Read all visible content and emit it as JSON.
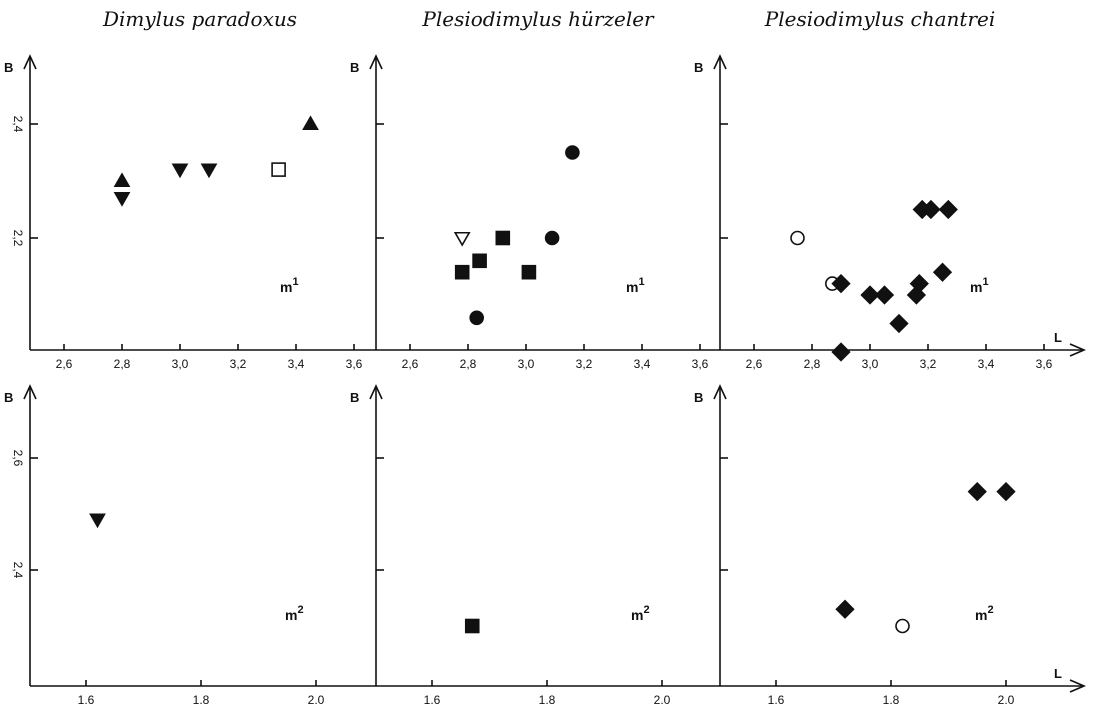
{
  "titles": [
    "Dimylus paradoxus",
    "Plesiodimylus hürzeler",
    "Plesiodimylus chantrei"
  ],
  "axis_labels": {
    "y": "B",
    "x": "L"
  },
  "chart_data": [
    {
      "type": "scatter",
      "row": 0,
      "col": 0,
      "title": "Dimylus paradoxus",
      "panel_label": {
        "base": "m",
        "sup": "1"
      },
      "xlim": [
        2.45,
        3.72
      ],
      "ylim": [
        1.99,
        2.4
      ],
      "x_ticks": [
        2.6,
        2.8,
        3.0,
        3.2,
        3.4,
        3.6
      ],
      "x_tick_labels": [
        "2,6",
        "2,8",
        "3,0",
        "3,2",
        "3,4",
        "3,6"
      ],
      "y_ticks": [
        2.2,
        2.4
      ],
      "y_tick_labels": [
        "2,2",
        "2,4"
      ],
      "points": [
        {
          "x": 2.8,
          "y": 2.3,
          "marker": "triangle-up-filled"
        },
        {
          "x": 2.8,
          "y": 2.27,
          "marker": "triangle-down-filled"
        },
        {
          "x": 3.0,
          "y": 2.32,
          "marker": "triangle-down-filled"
        },
        {
          "x": 3.1,
          "y": 2.32,
          "marker": "triangle-down-filled"
        },
        {
          "x": 3.34,
          "y": 2.32,
          "marker": "square-open"
        },
        {
          "x": 3.45,
          "y": 2.4,
          "marker": "triangle-up-filled"
        }
      ]
    },
    {
      "type": "scatter",
      "row": 0,
      "col": 1,
      "title": "Plesiodimylus hürzeler",
      "panel_label": {
        "base": "m",
        "sup": "1"
      },
      "xlim": [
        2.45,
        3.72
      ],
      "ylim": [
        1.99,
        2.4
      ],
      "x_ticks": [
        2.6,
        2.8,
        3.0,
        3.2,
        3.4,
        3.6
      ],
      "x_tick_labels": [
        "2,6",
        "2,8",
        "3,0",
        "3,2",
        "3,4",
        "3,6"
      ],
      "y_ticks": [
        2.2,
        2.4
      ],
      "y_tick_labels": [],
      "points": [
        {
          "x": 2.78,
          "y": 2.2,
          "marker": "triangle-down-open"
        },
        {
          "x": 2.78,
          "y": 2.14,
          "marker": "square-filled"
        },
        {
          "x": 2.84,
          "y": 2.16,
          "marker": "square-filled"
        },
        {
          "x": 2.92,
          "y": 2.2,
          "marker": "square-filled"
        },
        {
          "x": 3.01,
          "y": 2.14,
          "marker": "square-filled"
        },
        {
          "x": 2.83,
          "y": 2.06,
          "marker": "circle-filled"
        },
        {
          "x": 3.09,
          "y": 2.2,
          "marker": "circle-filled"
        },
        {
          "x": 3.16,
          "y": 2.35,
          "marker": "circle-filled"
        }
      ]
    },
    {
      "type": "scatter",
      "row": 0,
      "col": 2,
      "title": "Plesiodimylus chantrei",
      "panel_label": {
        "base": "m",
        "sup": "1"
      },
      "xlim": [
        2.45,
        3.72
      ],
      "ylim": [
        1.99,
        2.4
      ],
      "x_ticks": [
        2.6,
        2.8,
        3.0,
        3.2,
        3.4,
        3.6
      ],
      "x_tick_labels": [
        "2,6",
        "2,8",
        "3,0",
        "3,2",
        "3,4",
        "3,6"
      ],
      "y_ticks": [
        2.2,
        2.4
      ],
      "y_tick_labels": [],
      "points": [
        {
          "x": 2.75,
          "y": 2.2,
          "marker": "circle-open"
        },
        {
          "x": 2.87,
          "y": 2.12,
          "marker": "circle-open"
        },
        {
          "x": 2.9,
          "y": 2.12,
          "marker": "diamond-filled"
        },
        {
          "x": 2.9,
          "y": 2.0,
          "marker": "diamond-filled"
        },
        {
          "x": 3.0,
          "y": 2.1,
          "marker": "diamond-filled"
        },
        {
          "x": 3.05,
          "y": 2.1,
          "marker": "diamond-filled"
        },
        {
          "x": 3.1,
          "y": 2.05,
          "marker": "diamond-filled"
        },
        {
          "x": 3.16,
          "y": 2.1,
          "marker": "diamond-filled"
        },
        {
          "x": 3.17,
          "y": 2.12,
          "marker": "diamond-filled"
        },
        {
          "x": 3.18,
          "y": 2.25,
          "marker": "diamond-filled"
        },
        {
          "x": 3.21,
          "y": 2.25,
          "marker": "diamond-filled"
        },
        {
          "x": 3.25,
          "y": 2.14,
          "marker": "diamond-filled"
        },
        {
          "x": 3.27,
          "y": 2.25,
          "marker": "diamond-filled"
        }
      ]
    },
    {
      "type": "scatter",
      "row": 1,
      "col": 0,
      "title": "Dimylus paradoxus",
      "panel_label": {
        "base": "m",
        "sup": "2"
      },
      "xlim": [
        1.45,
        2.11
      ],
      "ylim": [
        2.18,
        2.79
      ],
      "x_ticks": [
        1.6,
        1.8,
        2.0
      ],
      "x_tick_labels": [
        "1,6",
        "1,8",
        "2,0"
      ],
      "y_ticks": [
        2.4,
        2.6
      ],
      "y_tick_labels": [
        "2,4",
        "2,6"
      ],
      "points": [
        {
          "x": 1.62,
          "y": 2.49,
          "marker": "triangle-down-filled"
        }
      ]
    },
    {
      "type": "scatter",
      "row": 1,
      "col": 1,
      "title": "Plesiodimylus hürzeler",
      "panel_label": {
        "base": "m",
        "sup": "2"
      },
      "xlim": [
        1.45,
        2.11
      ],
      "ylim": [
        2.18,
        2.79
      ],
      "x_ticks": [
        1.6,
        1.8,
        2.0
      ],
      "x_tick_labels": [
        "1,6",
        "1,8",
        "2,0"
      ],
      "y_ticks": [
        2.4,
        2.6
      ],
      "y_tick_labels": [],
      "points": [
        {
          "x": 1.67,
          "y": 2.3,
          "marker": "square-filled"
        }
      ]
    },
    {
      "type": "scatter",
      "row": 1,
      "col": 2,
      "title": "Plesiodimylus chantrei",
      "panel_label": {
        "base": "m",
        "sup": "2"
      },
      "xlim": [
        1.45,
        2.11
      ],
      "ylim": [
        2.18,
        2.79
      ],
      "x_ticks": [
        1.6,
        1.8,
        2.0
      ],
      "x_tick_labels": [
        "1,6",
        "1,8",
        "2,0"
      ],
      "y_ticks": [
        2.4,
        2.6
      ],
      "y_tick_labels": [],
      "points": [
        {
          "x": 1.72,
          "y": 2.33,
          "marker": "diamond-filled"
        },
        {
          "x": 1.82,
          "y": 2.3,
          "marker": "circle-open"
        },
        {
          "x": 1.95,
          "y": 2.54,
          "marker": "diamond-filled"
        },
        {
          "x": 2.0,
          "y": 2.54,
          "marker": "diamond-filled"
        }
      ]
    }
  ]
}
